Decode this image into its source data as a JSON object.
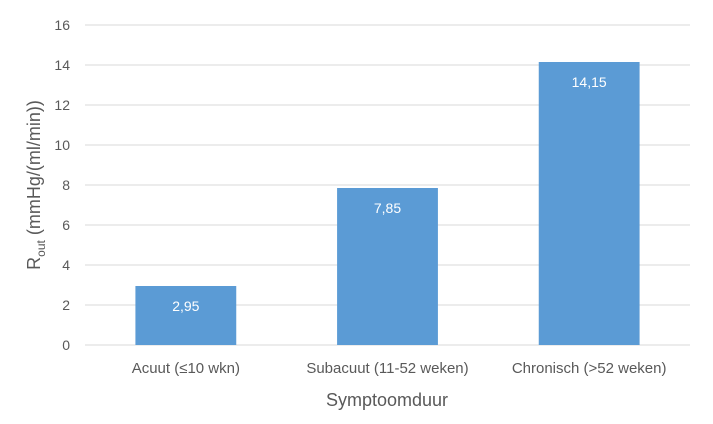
{
  "chart_data": {
    "type": "bar",
    "categories": [
      "Acuut (≤10 wkn)",
      "Subacuut (11-52 weken)",
      "Chronisch (>52 weken)"
    ],
    "values": [
      2.95,
      7.85,
      14.15
    ],
    "data_labels": [
      "2,95",
      "7,85",
      "14,15"
    ],
    "xlabel": "Symptoomduur",
    "ylabel": {
      "main": "R",
      "subscript": "out",
      "rest": " (mmHg/(ml/min))"
    },
    "ylim": [
      0,
      16
    ],
    "yticks": [
      0,
      2,
      4,
      6,
      8,
      10,
      12,
      14,
      16
    ],
    "ytick_labels": [
      "0",
      "2",
      "4",
      "6",
      "8",
      "10",
      "12",
      "14",
      "16"
    ],
    "grid": true,
    "legend": "none",
    "colors": {
      "bar": "#5b9bd5",
      "grid": "#d9d9d9",
      "text": "#595959",
      "data_label": "#ffffff"
    }
  }
}
